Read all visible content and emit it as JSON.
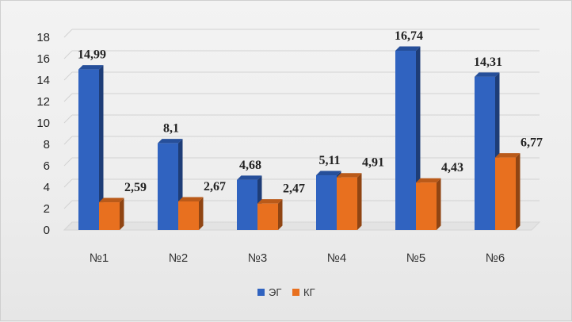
{
  "chart_data": {
    "type": "bar",
    "categories": [
      "№1",
      "№2",
      "№3",
      "№4",
      "№5",
      "№6"
    ],
    "series": [
      {
        "name": "ЭГ",
        "values": [
          14.99,
          8.1,
          4.68,
          5.11,
          16.74,
          14.31
        ],
        "labels": [
          "14,99",
          "8,1",
          "4,68",
          "5,11",
          "16,74",
          "14,31"
        ],
        "color": "#3063c0"
      },
      {
        "name": "КГ",
        "values": [
          2.59,
          2.67,
          2.47,
          4.91,
          4.43,
          6.77
        ],
        "labels": [
          "2,59",
          "2,67",
          "2,47",
          "4,91",
          "4,43",
          "6,77"
        ],
        "color": "#e8701f"
      }
    ],
    "ylim": [
      0,
      18
    ],
    "yticks": [
      0,
      2,
      4,
      6,
      8,
      10,
      12,
      14,
      16,
      18
    ],
    "grid": true,
    "legend": "bottom"
  }
}
